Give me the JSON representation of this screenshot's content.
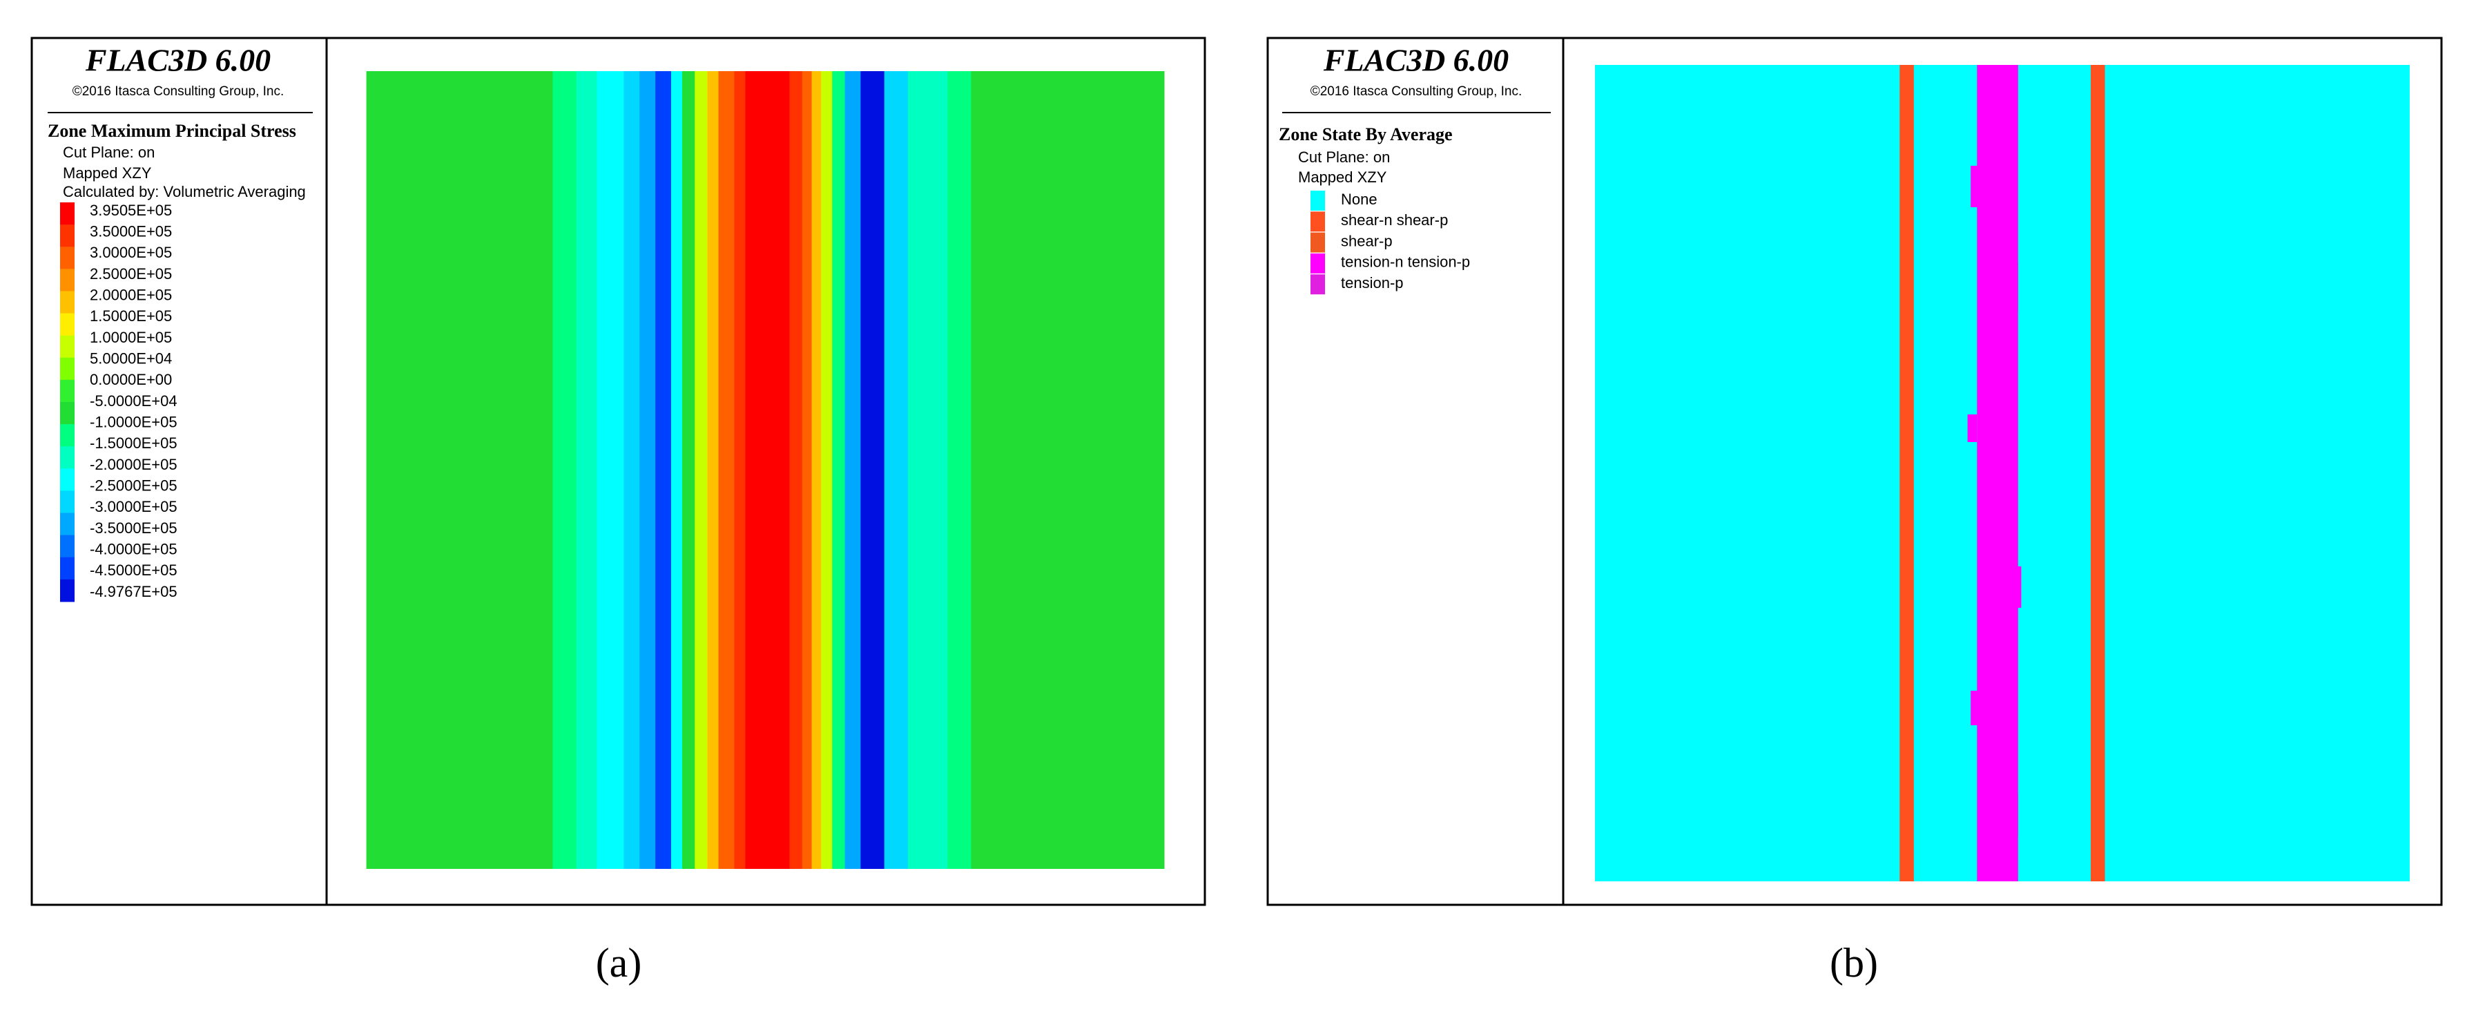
{
  "panels": [
    {
      "header": {
        "title": "FLAC3D 6.00",
        "copyright": "©2016 Itasca Consulting Group, Inc."
      },
      "legend": {
        "title": "Zone Maximum Principal Stress",
        "lines": [
          "Cut Plane: on",
          "Mapped XZY",
          "Calculated by: Volumetric Averaging"
        ],
        "labels": [
          "3.9505E+05",
          "3.5000E+05",
          "3.0000E+05",
          "2.5000E+05",
          "2.0000E+05",
          "1.5000E+05",
          "1.0000E+05",
          "5.0000E+04",
          "0.0000E+00",
          "-5.0000E+04",
          "-1.0000E+05",
          "-1.5000E+05",
          "-2.0000E+05",
          "-2.5000E+05",
          "-3.0000E+05",
          "-3.5000E+05",
          "-4.0000E+05",
          "-4.5000E+05",
          "-4.9767E+05"
        ],
        "colors": [
          "#ff0000",
          "#ff3300",
          "#ff6000",
          "#ff9000",
          "#ffc000",
          "#ffee00",
          "#c8ff00",
          "#80ff00",
          "#30f030",
          "#22dd33",
          "#00ff80",
          "#00ffc0",
          "#00ffff",
          "#00d8ff",
          "#00a8ff",
          "#0070ff",
          "#0040ff",
          "#0010e0"
        ]
      },
      "caption": "(a)"
    },
    {
      "header": {
        "title": "FLAC3D 6.00",
        "copyright": "©2016 Itasca Consulting Group, Inc."
      },
      "legend": {
        "title": "Zone State By Average",
        "lines": [
          "Cut Plane: on",
          "Mapped XZY"
        ],
        "items": [
          {
            "label": "None",
            "color": "#00ffff"
          },
          {
            "label": "shear-n shear-p",
            "color": "#ff5020"
          },
          {
            "label": "shear-p",
            "color": "#f05a20"
          },
          {
            "label": "tension-n tension-p",
            "color": "#ff00ff"
          },
          {
            "label": "tension-p",
            "color": "#e020e0"
          }
        ]
      },
      "caption": "(b)"
    }
  ]
}
